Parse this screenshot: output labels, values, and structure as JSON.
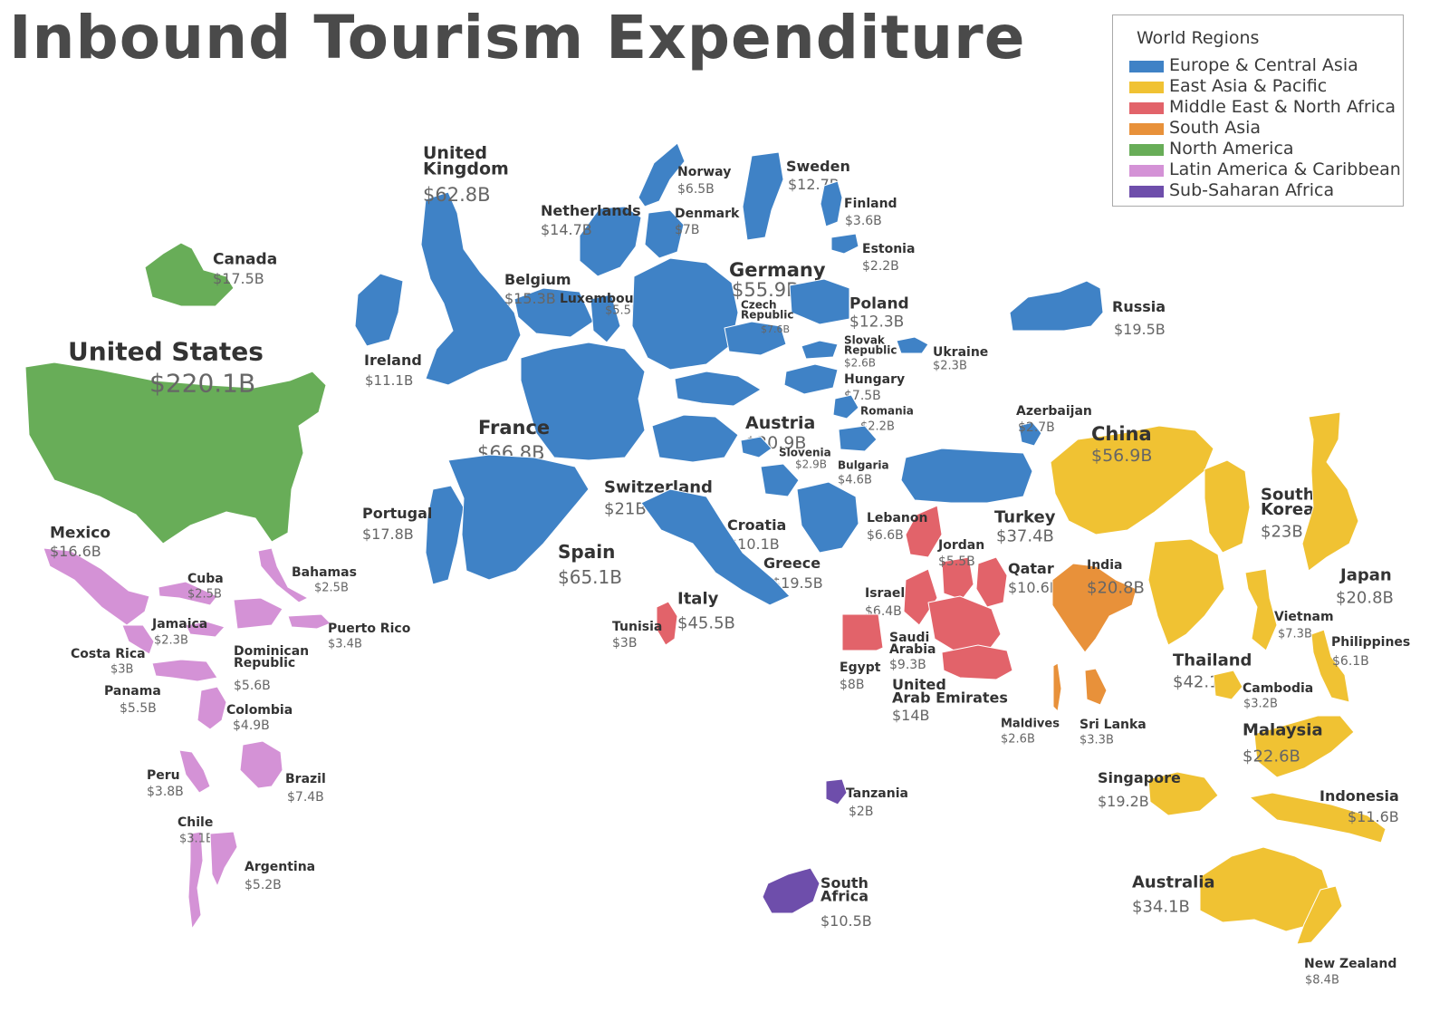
{
  "title": "Inbound Tourism Expenditure",
  "legend": {
    "title": "World Regions",
    "items": [
      {
        "key": "eca",
        "label": "Europe & Central Asia",
        "color": "#3f82c6"
      },
      {
        "key": "eap",
        "label": "East Asia & Pacific",
        "color": "#f0c233"
      },
      {
        "key": "mena",
        "label": "Middle East & North Africa",
        "color": "#e2636a"
      },
      {
        "key": "sa",
        "label": "South Asia",
        "color": "#e8913a"
      },
      {
        "key": "na",
        "label": "North America",
        "color": "#68ad58"
      },
      {
        "key": "lac",
        "label": "Latin America & Caribbean",
        "color": "#d492d6"
      },
      {
        "key": "ssa",
        "label": "Sub-Saharan Africa",
        "color": "#6e4eab"
      }
    ]
  },
  "chart_data": {
    "type": "cartogram",
    "unit": "USD billions",
    "countries": [
      {
        "name": "United States",
        "value": "$220.1B",
        "amount": 220.1,
        "region": "na"
      },
      {
        "name": "Canada",
        "value": "$17.5B",
        "amount": 17.5,
        "region": "na"
      },
      {
        "name": "Mexico",
        "value": "$16.6B",
        "amount": 16.6,
        "region": "lac"
      },
      {
        "name": "Cuba",
        "value": "$2.5B",
        "amount": 2.5,
        "region": "lac"
      },
      {
        "name": "Bahamas",
        "value": "$2.5B",
        "amount": 2.5,
        "region": "lac"
      },
      {
        "name": "Jamaica",
        "value": "$2.3B",
        "amount": 2.3,
        "region": "lac"
      },
      {
        "name": "Puerto Rico",
        "value": "$3.4B",
        "amount": 3.4,
        "region": "lac"
      },
      {
        "name": "Costa Rica",
        "value": "$3B",
        "amount": 3,
        "region": "lac"
      },
      {
        "name": "Dominican Republic",
        "value": "$5.6B",
        "amount": 5.6,
        "region": "lac"
      },
      {
        "name": "Panama",
        "value": "$5.5B",
        "amount": 5.5,
        "region": "lac"
      },
      {
        "name": "Colombia",
        "value": "$4.9B",
        "amount": 4.9,
        "region": "lac"
      },
      {
        "name": "Peru",
        "value": "$3.8B",
        "amount": 3.8,
        "region": "lac"
      },
      {
        "name": "Brazil",
        "value": "$7.4B",
        "amount": 7.4,
        "region": "lac"
      },
      {
        "name": "Chile",
        "value": "$3.1B",
        "amount": 3.1,
        "region": "lac"
      },
      {
        "name": "Argentina",
        "value": "$5.2B",
        "amount": 5.2,
        "region": "lac"
      },
      {
        "name": "United Kingdom",
        "value": "$62.8B",
        "amount": 62.8,
        "region": "eca"
      },
      {
        "name": "Ireland",
        "value": "$11.1B",
        "amount": 11.1,
        "region": "eca"
      },
      {
        "name": "Norway",
        "value": "$6.5B",
        "amount": 6.5,
        "region": "eca"
      },
      {
        "name": "Sweden",
        "value": "$12.7B",
        "amount": 12.7,
        "region": "eca"
      },
      {
        "name": "Finland",
        "value": "$3.6B",
        "amount": 3.6,
        "region": "eca"
      },
      {
        "name": "Netherlands",
        "value": "$14.7B",
        "amount": 14.7,
        "region": "eca"
      },
      {
        "name": "Denmark",
        "value": "$7B",
        "amount": 7,
        "region": "eca"
      },
      {
        "name": "Estonia",
        "value": "$2.2B",
        "amount": 2.2,
        "region": "eca"
      },
      {
        "name": "Belgium",
        "value": "$15.3B",
        "amount": 15.3,
        "region": "eca"
      },
      {
        "name": "Luxembourg",
        "value": "$5.5B",
        "amount": 5.5,
        "region": "eca"
      },
      {
        "name": "Germany",
        "value": "$55.9B",
        "amount": 55.9,
        "region": "eca"
      },
      {
        "name": "Poland",
        "value": "$12.3B",
        "amount": 12.3,
        "region": "eca"
      },
      {
        "name": "Czech Republic",
        "value": "$7.6B",
        "amount": 7.6,
        "region": "eca"
      },
      {
        "name": "Slovak Republic",
        "value": "$2.6B",
        "amount": 2.6,
        "region": "eca"
      },
      {
        "name": "Ukraine",
        "value": "$2.3B",
        "amount": 2.3,
        "region": "eca"
      },
      {
        "name": "Hungary",
        "value": "$7.5B",
        "amount": 7.5,
        "region": "eca"
      },
      {
        "name": "Russia",
        "value": "$19.5B",
        "amount": 19.5,
        "region": "eca"
      },
      {
        "name": "France",
        "value": "$66.8B",
        "amount": 66.8,
        "region": "eca"
      },
      {
        "name": "Austria",
        "value": "$20.9B",
        "amount": 20.9,
        "region": "eca"
      },
      {
        "name": "Romania",
        "value": "$2.2B",
        "amount": 2.2,
        "region": "eca"
      },
      {
        "name": "Slovenia",
        "value": "$2.9B",
        "amount": 2.9,
        "region": "eca"
      },
      {
        "name": "Bulgaria",
        "value": "$4.6B",
        "amount": 4.6,
        "region": "eca"
      },
      {
        "name": "Azerbaijan",
        "value": "$2.7B",
        "amount": 2.7,
        "region": "eca"
      },
      {
        "name": "Switzerland",
        "value": "$21B",
        "amount": 21,
        "region": "eca"
      },
      {
        "name": "Portugal",
        "value": "$17.8B",
        "amount": 17.8,
        "region": "eca"
      },
      {
        "name": "Spain",
        "value": "$65.1B",
        "amount": 65.1,
        "region": "eca"
      },
      {
        "name": "Croatia",
        "value": "$10.1B",
        "amount": 10.1,
        "region": "eca"
      },
      {
        "name": "Greece",
        "value": "$19.5B",
        "amount": 19.5,
        "region": "eca"
      },
      {
        "name": "Italy",
        "value": "$45.5B",
        "amount": 45.5,
        "region": "eca"
      },
      {
        "name": "Turkey",
        "value": "$37.4B",
        "amount": 37.4,
        "region": "eca"
      },
      {
        "name": "Tunisia",
        "value": "$3B",
        "amount": 3,
        "region": "mena"
      },
      {
        "name": "Lebanon",
        "value": "$6.6B",
        "amount": 6.6,
        "region": "mena"
      },
      {
        "name": "Jordan",
        "value": "$5.5B",
        "amount": 5.5,
        "region": "mena"
      },
      {
        "name": "Israel",
        "value": "$6.4B",
        "amount": 6.4,
        "region": "mena"
      },
      {
        "name": "Qatar",
        "value": "$10.6B",
        "amount": 10.6,
        "region": "mena"
      },
      {
        "name": "Saudi Arabia",
        "value": "$9.3B",
        "amount": 9.3,
        "region": "mena"
      },
      {
        "name": "Egypt",
        "value": "$8B",
        "amount": 8,
        "region": "mena"
      },
      {
        "name": "United Arab Emirates",
        "value": "$14B",
        "amount": 14,
        "region": "mena"
      },
      {
        "name": "India",
        "value": "$20.8B",
        "amount": 20.8,
        "region": "sa"
      },
      {
        "name": "Maldives",
        "value": "$2.6B",
        "amount": 2.6,
        "region": "sa"
      },
      {
        "name": "Sri Lanka",
        "value": "$3.3B",
        "amount": 3.3,
        "region": "sa"
      },
      {
        "name": "China",
        "value": "$56.9B",
        "amount": 56.9,
        "region": "eap"
      },
      {
        "name": "South Korea",
        "value": "$23B",
        "amount": 23,
        "region": "eap"
      },
      {
        "name": "Japan",
        "value": "$20.8B",
        "amount": 20.8,
        "region": "eap"
      },
      {
        "name": "Vietnam",
        "value": "$7.3B",
        "amount": 7.3,
        "region": "eap"
      },
      {
        "name": "Philippines",
        "value": "$6.1B",
        "amount": 6.1,
        "region": "eap"
      },
      {
        "name": "Thailand",
        "value": "$42.1B",
        "amount": 42.1,
        "region": "eap"
      },
      {
        "name": "Cambodia",
        "value": "$3.2B",
        "amount": 3.2,
        "region": "eap"
      },
      {
        "name": "Malaysia",
        "value": "$22.6B",
        "amount": 22.6,
        "region": "eap"
      },
      {
        "name": "Singapore",
        "value": "$19.2B",
        "amount": 19.2,
        "region": "eap"
      },
      {
        "name": "Indonesia",
        "value": "$11.6B",
        "amount": 11.6,
        "region": "eap"
      },
      {
        "name": "Australia",
        "value": "$34.1B",
        "amount": 34.1,
        "region": "eap"
      },
      {
        "name": "New Zealand",
        "value": "$8.4B",
        "amount": 8.4,
        "region": "eap"
      },
      {
        "name": "Tanzania",
        "value": "$2B",
        "amount": 2,
        "region": "ssa"
      },
      {
        "name": "South Africa",
        "value": "$10.5B",
        "amount": 10.5,
        "region": "ssa"
      }
    ]
  }
}
